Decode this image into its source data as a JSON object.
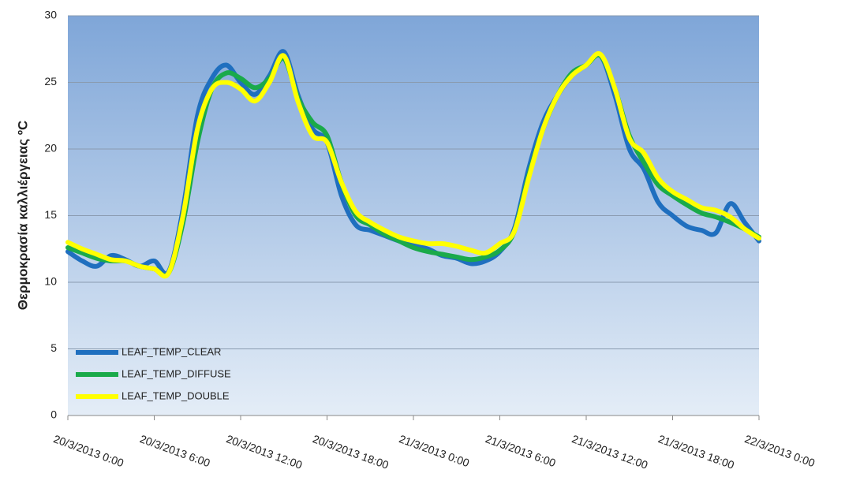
{
  "chart_data": {
    "type": "line",
    "y_label": "Θερμοκρασία καλλιέργειας ºC",
    "x": [
      "20/3/2013 0:00",
      "20/3/2013 1:00",
      "20/3/2013 2:00",
      "20/3/2013 3:00",
      "20/3/2013 4:00",
      "20/3/2013 5:00",
      "20/3/2013 6:00",
      "20/3/2013 7:00",
      "20/3/2013 8:00",
      "20/3/2013 9:00",
      "20/3/2013 10:00",
      "20/3/2013 11:00",
      "20/3/2013 12:00",
      "20/3/2013 13:00",
      "20/3/2013 14:00",
      "20/3/2013 15:00",
      "20/3/2013 16:00",
      "20/3/2013 17:00",
      "20/3/2013 18:00",
      "20/3/2013 19:00",
      "20/3/2013 20:00",
      "20/3/2013 21:00",
      "20/3/2013 22:00",
      "20/3/2013 23:00",
      "21/3/2013 0:00",
      "21/3/2013 1:00",
      "21/3/2013 2:00",
      "21/3/2013 3:00",
      "21/3/2013 4:00",
      "21/3/2013 5:00",
      "21/3/2013 6:00",
      "21/3/2013 7:00",
      "21/3/2013 8:00",
      "21/3/2013 9:00",
      "21/3/2013 10:00",
      "21/3/2013 11:00",
      "21/3/2013 12:00",
      "21/3/2013 13:00",
      "21/3/2013 14:00",
      "21/3/2013 15:00",
      "21/3/2013 16:00",
      "21/3/2013 17:00",
      "21/3/2013 18:00",
      "21/3/2013 19:00",
      "21/3/2013 20:00",
      "21/3/2013 21:00",
      "21/3/2013 22:00",
      "21/3/2013 23:00",
      "22/3/2013 0:00"
    ],
    "series": [
      {
        "name": "LEAF_TEMP_CLEAR",
        "color": "#1f6fbf",
        "values": [
          12.3,
          11.6,
          11.2,
          12.0,
          11.7,
          11.2,
          11.6,
          10.8,
          15.5,
          22.5,
          25.3,
          26.3,
          25.0,
          24.1,
          25.5,
          27.3,
          24.0,
          21.5,
          20.5,
          16.5,
          14.3,
          13.9,
          13.5,
          13.1,
          12.8,
          12.5,
          12.0,
          11.8,
          11.4,
          11.6,
          12.3,
          14.0,
          18.5,
          22.0,
          24.0,
          25.5,
          26.3,
          27.0,
          24.0,
          20.0,
          18.5,
          16.0,
          15.0,
          14.2,
          13.9,
          13.7,
          15.9,
          14.5,
          13.1
        ]
      },
      {
        "name": "LEAF_TEMP_DIFFUSE",
        "color": "#1aaa4a",
        "values": [
          12.6,
          12.2,
          11.8,
          11.6,
          11.6,
          11.2,
          11.0,
          10.7,
          14.5,
          20.5,
          24.5,
          25.7,
          25.3,
          24.6,
          25.3,
          26.8,
          23.8,
          22.0,
          21.0,
          17.5,
          15.0,
          14.3,
          13.6,
          13.1,
          12.6,
          12.3,
          12.1,
          11.9,
          11.7,
          11.9,
          12.4,
          13.8,
          18.0,
          21.5,
          24.0,
          25.7,
          26.3,
          27.0,
          24.5,
          21.0,
          19.0,
          17.3,
          16.5,
          15.8,
          15.2,
          14.9,
          14.5,
          14.0,
          13.4
        ]
      },
      {
        "name": "LEAF_TEMP_DOUBLE",
        "color": "#ffff00",
        "values": [
          13.0,
          12.5,
          12.1,
          11.7,
          11.6,
          11.2,
          11.0,
          10.7,
          15.0,
          21.5,
          24.5,
          25.0,
          24.5,
          23.6,
          25.0,
          27.0,
          23.5,
          21.0,
          20.5,
          17.5,
          15.3,
          14.5,
          13.9,
          13.4,
          13.1,
          12.9,
          12.9,
          12.7,
          12.4,
          12.2,
          12.9,
          13.8,
          17.8,
          21.5,
          24.0,
          25.5,
          26.3,
          27.1,
          24.5,
          20.8,
          19.7,
          17.8,
          16.8,
          16.2,
          15.6,
          15.4,
          14.9,
          14.0,
          13.3
        ]
      }
    ],
    "xlim": [
      "20/3/2013 0:00",
      "22/3/2013 0:00"
    ],
    "xticks": [
      "20/3/2013 0:00",
      "20/3/2013 6:00",
      "20/3/2013 12:00",
      "20/3/2013 18:00",
      "21/3/2013 0:00",
      "21/3/2013 6:00",
      "21/3/2013 12:00",
      "21/3/2013 18:00",
      "22/3/2013 0:00"
    ],
    "ylim": [
      0,
      30
    ],
    "yticks": [
      0,
      5,
      10,
      15,
      20,
      25,
      30
    ],
    "grid": true,
    "legend": "lower left"
  }
}
